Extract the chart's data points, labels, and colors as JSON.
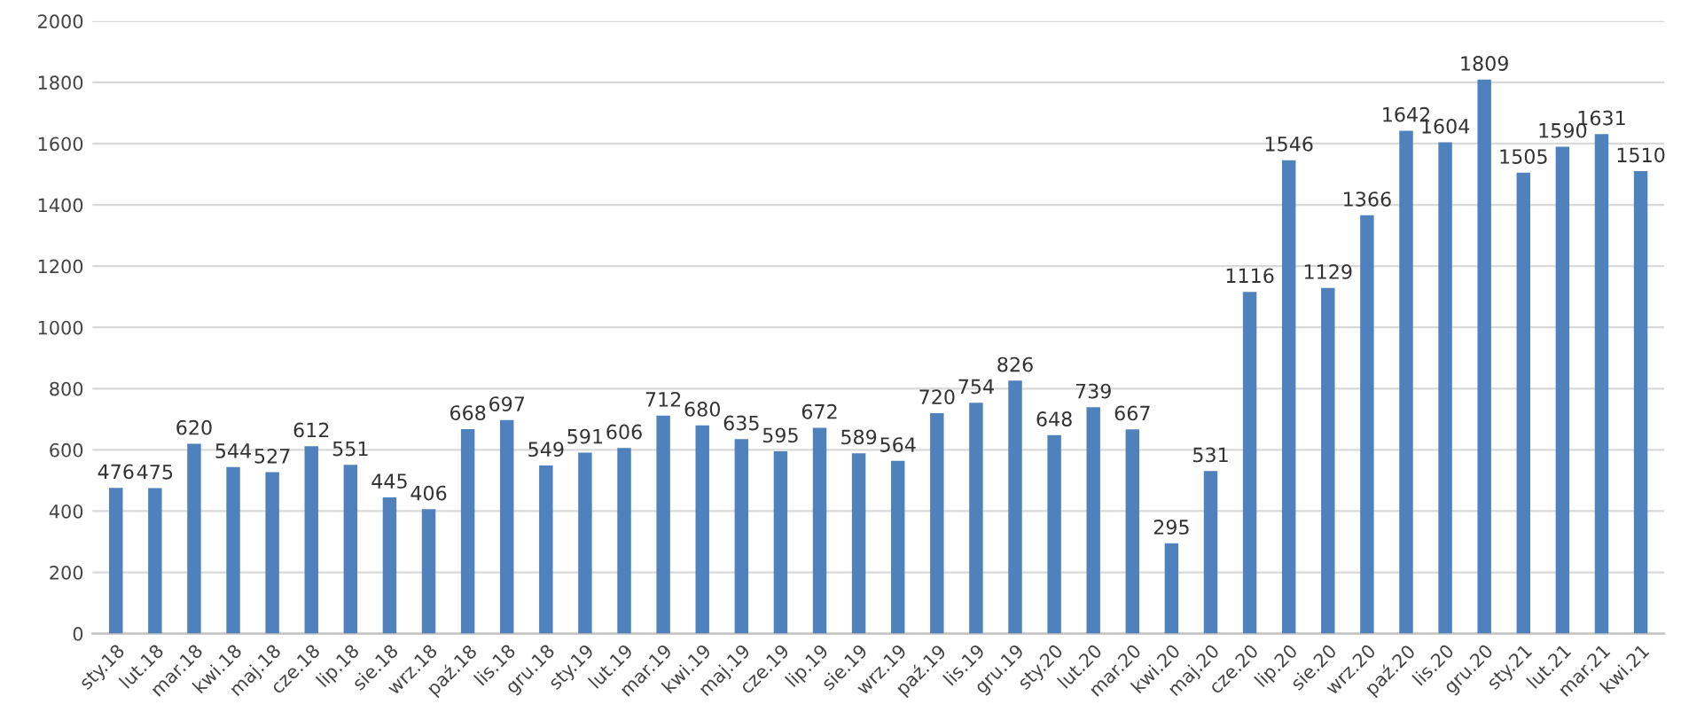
{
  "chart_data": {
    "type": "bar",
    "categories": [
      "sty.18",
      "lut.18",
      "mar.18",
      "kwi.18",
      "maj.18",
      "cze.18",
      "lip.18",
      "sie.18",
      "wrz.18",
      "paź.18",
      "lis.18",
      "gru.18",
      "sty.19",
      "lut.19",
      "mar.19",
      "kwi.19",
      "maj.19",
      "cze.19",
      "lip.19",
      "sie.19",
      "wrz.19",
      "paź.19",
      "lis.19",
      "gru.19",
      "sty.20",
      "lut.20",
      "mar.20",
      "kwi.20",
      "maj.20",
      "cze.20",
      "lip.20",
      "sie.20",
      "wrz.20",
      "paź.20",
      "lis.20",
      "gru.20",
      "sty.21",
      "lut.21",
      "mar.21",
      "kwi.21"
    ],
    "values": [
      476,
      475,
      620,
      544,
      527,
      612,
      551,
      445,
      406,
      668,
      697,
      549,
      591,
      606,
      712,
      680,
      635,
      595,
      672,
      589,
      564,
      720,
      754,
      826,
      648,
      739,
      667,
      295,
      531,
      1116,
      1546,
      1129,
      1366,
      1642,
      1604,
      1809,
      1505,
      1590,
      1631,
      1510
    ],
    "color": "#4f81bd",
    "ylim": [
      0,
      2000
    ],
    "yticks": [
      0,
      200,
      400,
      600,
      800,
      1000,
      1200,
      1400,
      1600,
      1800,
      2000
    ],
    "grid": "y",
    "data_labels": true
  }
}
